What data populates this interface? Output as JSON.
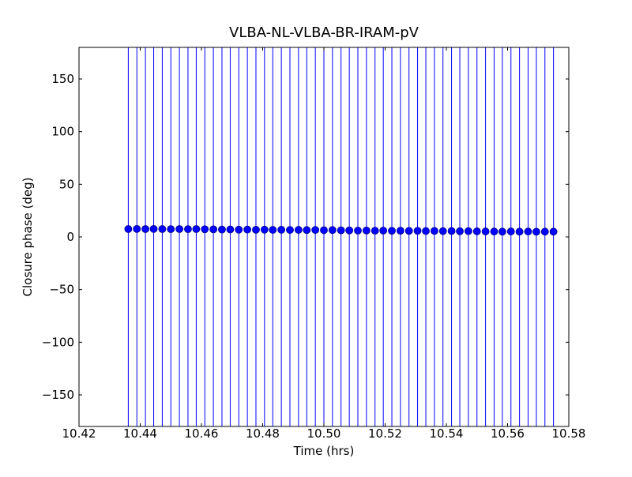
{
  "chart_data": {
    "type": "errorbar",
    "title": "VLBA-NL-VLBA-BR-IRAM-pV",
    "x_label": "Time (hrs)",
    "y_label": "Closure phase (deg)",
    "color": "#0000ff",
    "xlim": [
      10.42,
      10.58
    ],
    "ylim": [
      -180,
      180
    ],
    "xticks": [
      10.42,
      10.44,
      10.46,
      10.48,
      {
        "value": 10.5,
        "label": "10.50"
      },
      10.52,
      10.54,
      10.56,
      10.58
    ],
    "yticks": [
      {
        "value": -150,
        "label": "−150"
      },
      {
        "value": -100,
        "label": "−100"
      },
      {
        "value": -50,
        "label": "−50"
      },
      0,
      50,
      100,
      150
    ],
    "x": [
      10.4361,
      10.4389,
      10.4417,
      10.4444,
      10.4472,
      10.45,
      10.4528,
      10.4556,
      10.4583,
      10.4611,
      10.4639,
      10.4667,
      10.4694,
      10.4722,
      10.475,
      10.4778,
      10.4806,
      10.4833,
      10.4861,
      10.4889,
      10.4917,
      10.4944,
      10.4972,
      10.5,
      10.5028,
      10.5056,
      10.5083,
      10.5111,
      10.5139,
      10.5167,
      10.5194,
      10.5222,
      10.525,
      10.5278,
      10.5306,
      10.5333,
      10.5361,
      10.5389,
      10.5417,
      10.5444,
      10.5472,
      10.55,
      10.5528,
      10.5556,
      10.5583,
      10.5611,
      10.5639,
      10.5667,
      10.5694,
      10.5722,
      10.575
    ],
    "values": [
      7.5,
      7.6,
      7.5,
      7.6,
      7.5,
      7.4,
      7.5,
      7.4,
      7.5,
      7.3,
      7.2,
      7.0,
      7.1,
      6.9,
      7.0,
      6.8,
      6.9,
      6.7,
      6.8,
      6.6,
      6.7,
      6.5,
      6.6,
      6.4,
      6.5,
      6.3,
      6.2,
      6.0,
      6.1,
      5.9,
      6.0,
      5.8,
      5.9,
      5.7,
      5.8,
      5.6,
      5.7,
      5.5,
      5.6,
      5.4,
      5.5,
      5.3,
      5.2,
      5.1,
      5.0,
      5.2,
      5.0,
      5.1,
      4.9,
      5.0,
      5.0
    ],
    "errors": [
      200,
      200,
      200,
      200,
      200,
      200,
      200,
      200,
      200,
      200,
      200,
      200,
      200,
      200,
      200,
      200,
      200,
      200,
      200,
      200,
      200,
      200,
      200,
      200,
      200,
      200,
      200,
      200,
      200,
      200,
      200,
      200,
      200,
      200,
      200,
      200,
      200,
      200,
      200,
      200,
      200,
      200,
      200,
      200,
      200,
      200,
      200,
      200,
      200,
      200,
      200
    ]
  }
}
